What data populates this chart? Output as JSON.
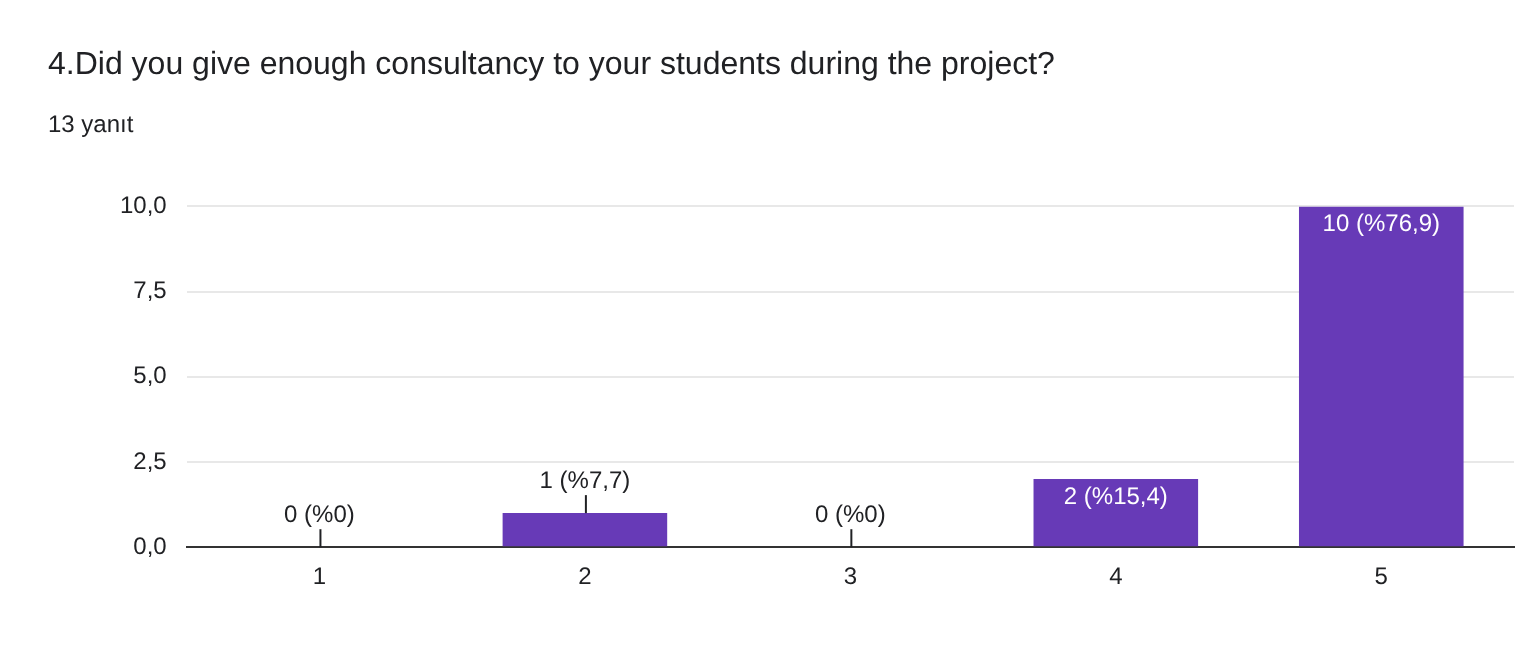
{
  "chart_data": {
    "type": "bar",
    "title": "4.Did you give enough consultancy to your students during the project?",
    "subtitle": "13 yanıt",
    "categories": [
      "1",
      "2",
      "3",
      "4",
      "5"
    ],
    "values": [
      0,
      1,
      0,
      2,
      10
    ],
    "value_labels": [
      "0 (%0)",
      "1 (%7,7)",
      "0 (%0)",
      "2 (%15,4)",
      "10 (%76,9)"
    ],
    "color": "#673ab7",
    "ylim": [
      0,
      10
    ],
    "yticks": [
      {
        "value": 0,
        "label": "0,0"
      },
      {
        "value": 2.5,
        "label": "2,5"
      },
      {
        "value": 5,
        "label": "5,0"
      },
      {
        "value": 7.5,
        "label": "7,5"
      },
      {
        "value": 10,
        "label": "10,0"
      }
    ],
    "grid": "y",
    "legend": false
  }
}
